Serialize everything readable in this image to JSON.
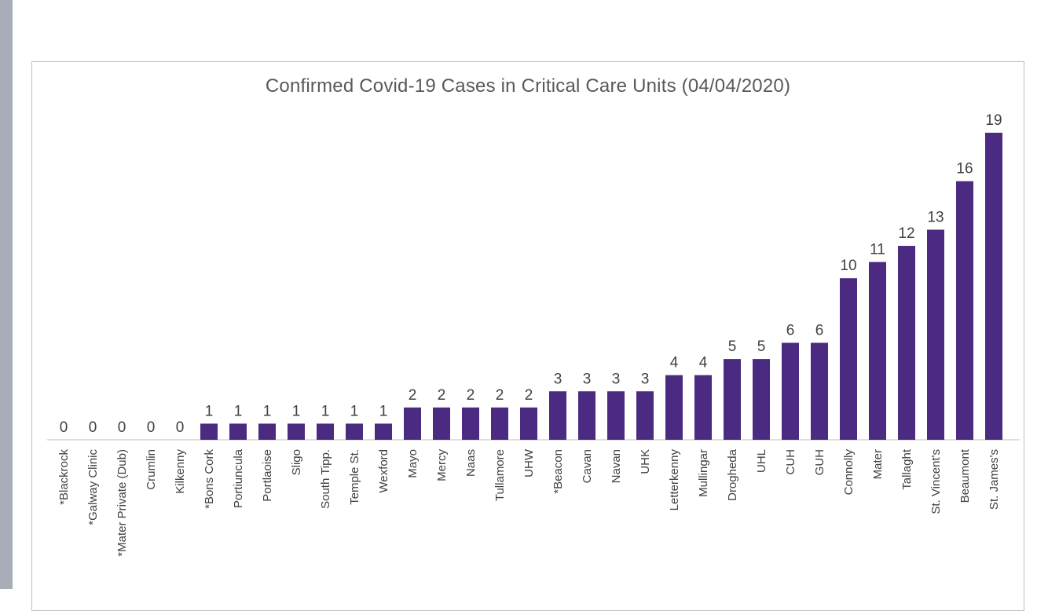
{
  "chart_data": {
    "type": "bar",
    "title": "Confirmed Covid-19 Cases in Critical Care Units (04/04/2020)",
    "xlabel": "",
    "ylabel": "",
    "ylim": [
      0,
      19
    ],
    "grid": false,
    "legend": "none",
    "bar_color": "#4b2a82",
    "categories": [
      "*Blackrock",
      "*Galway Clinic",
      "*Mater Private (Dub)",
      "Crumlin",
      "Kilkenny",
      "*Bons Cork",
      "Portiuncula",
      "Portlaoise",
      "Sligo",
      "South Tipp.",
      "Temple St.",
      "Wexford",
      "Mayo",
      "Mercy",
      "Naas",
      "Tullamore",
      "UHW",
      "*Beacon",
      "Cavan",
      "Navan",
      "UHK",
      "Letterkenny",
      "Mullingar",
      "Drogheda",
      "UHL",
      "CUH",
      "GUH",
      "Connolly",
      "Mater",
      "Tallaght",
      "St. Vincent's",
      "Beaumont",
      "St. James's"
    ],
    "values": [
      0,
      0,
      0,
      0,
      0,
      1,
      1,
      1,
      1,
      1,
      1,
      1,
      2,
      2,
      2,
      2,
      2,
      3,
      3,
      3,
      3,
      4,
      4,
      5,
      5,
      6,
      6,
      10,
      11,
      12,
      13,
      16,
      19
    ]
  }
}
